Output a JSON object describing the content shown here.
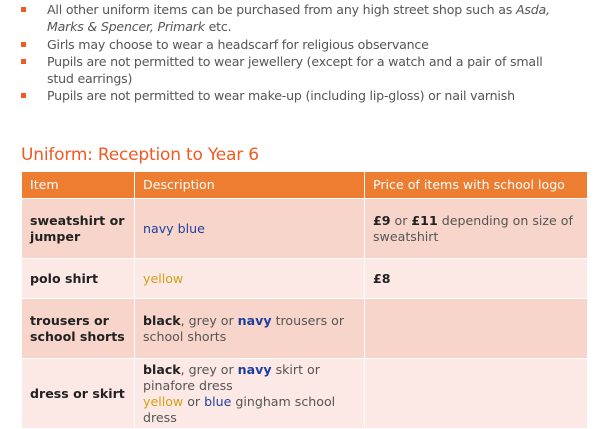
{
  "bullets": [
    {
      "pre": "All other uniform items can be purchased from any high street shop such as ",
      "em": "Asda, Marks & Spencer,  Primark",
      "post": " etc."
    },
    {
      "text": "Girls may choose to wear a headscarf for religious observance"
    },
    {
      "text": "Pupils are not permitted to wear jewellery (except for a watch and a pair of small stud earrings)"
    },
    {
      "text": "Pupils are not permitted to wear make-up (including lip-gloss) or nail varnish"
    }
  ],
  "title": "Uniform: Reception to Year 6",
  "table": {
    "headers": [
      "Item",
      "Description",
      "Price of items with school logo"
    ],
    "rows": [
      {
        "item": "sweatshirt or jumper",
        "desc": "navy blue",
        "price_a": "£9",
        "price_mid": " or ",
        "price_b": "£11",
        "price_rest": " depending  on size of sweatshirt"
      },
      {
        "item": "polo shirt",
        "desc": "yellow",
        "price": "£8"
      },
      {
        "item": "trousers or school shorts",
        "w1": "black",
        "w2": ", grey or ",
        "w3": "navy",
        "w4": "  trousers or school shorts"
      },
      {
        "item": "dress or skirt",
        "w1": "black",
        "w2": ", grey or ",
        "w3": "navy",
        "w4": "  skirt or pinafore dress",
        "l2a": "yellow",
        "l2b": " or ",
        "l2c": "blue",
        "l2d": " gingham school dress"
      }
    ]
  },
  "colors": {
    "accent": "#ed7d31",
    "heading": "#f05a22",
    "row_dark": "#f8d5cb",
    "row_light": "#fce8e4",
    "navy": "#1f3f9f",
    "yellow": "#d4a017"
  }
}
